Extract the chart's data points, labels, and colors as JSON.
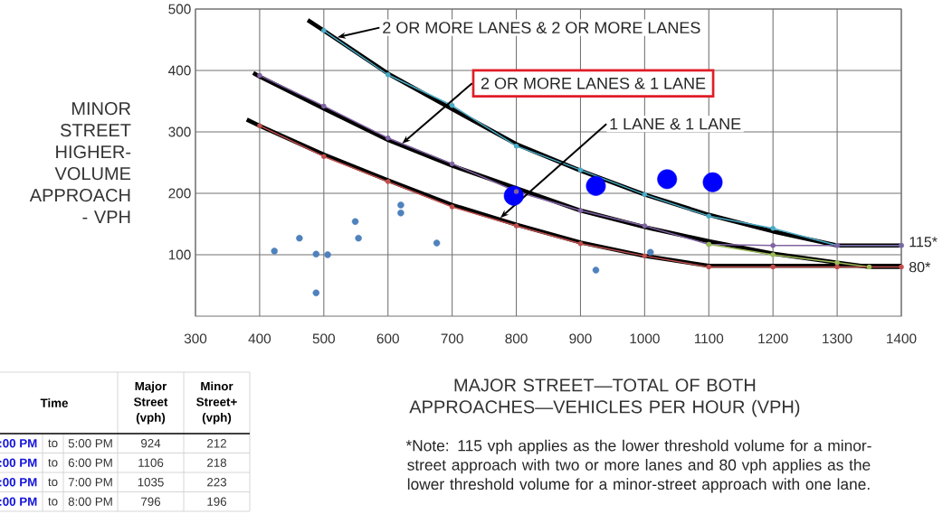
{
  "chart_data": {
    "type": "line",
    "xlabel": "MAJOR STREET—TOTAL OF BOTH APPROACHES—VEHICLES PER HOUR (VPH)",
    "ylabel": "MINOR STREET HIGHER-VOLUME APPROACH - VPH",
    "xlim": [
      300,
      1400
    ],
    "ylim": [
      0,
      500
    ],
    "xticks": [
      300,
      400,
      500,
      600,
      700,
      800,
      900,
      1000,
      1100,
      1200,
      1300,
      1400
    ],
    "yticks": [
      100,
      200,
      300,
      400,
      500
    ],
    "grid": true,
    "series": [
      {
        "color": "#000000",
        "marker": "none",
        "x": [
          475,
          500,
          600,
          700,
          800,
          900,
          1000,
          1100,
          1200,
          1300,
          1400
        ],
        "values": [
          482,
          465,
          395,
          337,
          280,
          237,
          198,
          165,
          138,
          115,
          115
        ]
      },
      {
        "color": "#000000",
        "marker": "none",
        "x": [
          390,
          400,
          500,
          600,
          700,
          900,
          1000,
          1100,
          1200,
          1300,
          1350,
          1400
        ],
        "values": [
          396,
          390,
          338,
          287,
          245,
          172,
          145,
          122,
          102,
          87,
          80,
          80
        ]
      },
      {
        "color": "#000000",
        "marker": "none",
        "x": [
          380,
          400,
          500,
          600,
          700,
          800,
          900,
          1000,
          1100,
          1200,
          1300,
          1400
        ],
        "values": [
          320,
          310,
          263,
          221,
          181,
          149,
          120,
          98,
          82,
          82,
          82,
          82
        ]
      },
      {
        "color": "#4bacc6",
        "marker": "circle",
        "x": [
          500,
          600,
          700,
          800,
          900,
          1000,
          1100,
          1200,
          1300,
          1400
        ],
        "values": [
          465,
          393,
          343,
          277,
          238,
          198,
          163,
          143,
          115,
          115
        ]
      },
      {
        "color": "#8064a2",
        "marker": "circle",
        "x": [
          400,
          500,
          600,
          700,
          800,
          900,
          1000,
          1100,
          1200,
          1300,
          1400
        ],
        "values": [
          392,
          342,
          290,
          248,
          203,
          172,
          147,
          117,
          115,
          115,
          115
        ]
      },
      {
        "color": "#9bbb59",
        "marker": "circle",
        "x": [
          1100,
          1200,
          1300,
          1350
        ],
        "values": [
          117,
          100,
          87,
          80
        ]
      },
      {
        "color": "#c0504d",
        "marker": "circle",
        "x": [
          400,
          500,
          600,
          700,
          800,
          900,
          1000,
          1100,
          1200,
          1300,
          1400
        ],
        "values": [
          310,
          260,
          219,
          178,
          147,
          118,
          98,
          80,
          80,
          80,
          80
        ]
      },
      {
        "type": "scatter",
        "color": "#4f81bd",
        "marker": "circle",
        "x": [
          423,
          462,
          488,
          506,
          488,
          549,
          554,
          620,
          620,
          676,
          1009,
          924
        ],
        "values": [
          106,
          127,
          101,
          100,
          38,
          154,
          127,
          181,
          168,
          119,
          104,
          75
        ]
      },
      {
        "type": "scatter",
        "color": "#0000ff",
        "marker": "circle",
        "x": [
          924,
          1106,
          1035,
          796
        ],
        "values": [
          212,
          218,
          223,
          196
        ]
      }
    ],
    "annotations": [
      {
        "text": "2 OR MORE LANES & 2 OR MORE LANES",
        "x": 521,
        "y": 454
      },
      {
        "text": "2 OR MORE LANES & 1 LANE",
        "x": 622,
        "y": 281
      },
      {
        "text": "1 LANE & 1 LANE",
        "x": 775,
        "y": 160
      },
      {
        "text": "115*",
        "x": 1400,
        "y": 115
      },
      {
        "text": "80*",
        "x": 1400,
        "y": 80
      },
      "*Note: 115 vph applies as the lower threshold volume for a minor-street approach with two or more lanes and 80 vph applies as the lower threshold volume for a minor-street approach with one lane.",
      "Time",
      "Major Street (vph)",
      "Minor Street+ (vph)",
      ":00 PM",
      "to",
      "5:00 PM",
      "924",
      "212",
      ":00 PM",
      "to",
      "6:00 PM",
      "1106",
      "218",
      ":00 PM",
      "to",
      "7:00 PM",
      "1035",
      "223",
      ":00 PM",
      "to",
      "8:00 PM",
      "796",
      "196"
    ]
  }
}
